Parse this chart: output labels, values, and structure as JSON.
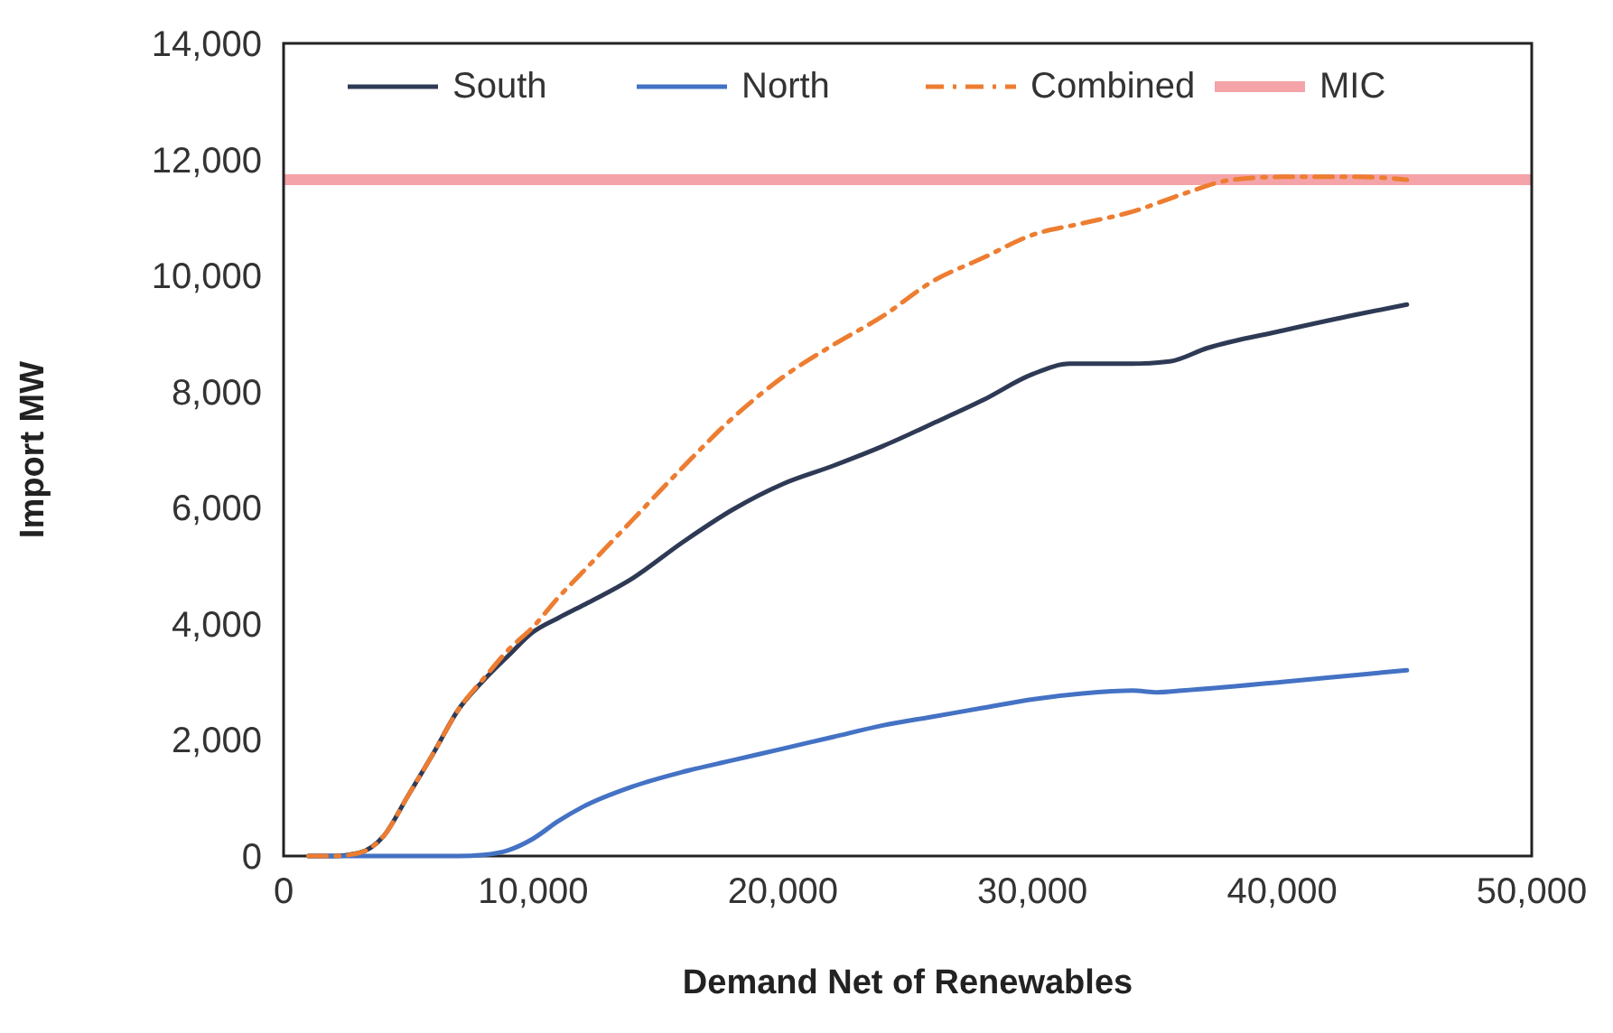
{
  "chart_data": {
    "type": "line",
    "xlabel": "Demand Net of Renewables",
    "ylabel": "Import MW",
    "xlim": [
      0,
      50000
    ],
    "ylim": [
      0,
      14000
    ],
    "xticks": [
      0,
      {
        "value": 10000,
        "label": "10,000"
      },
      {
        "value": 20000,
        "label": "20,000"
      },
      {
        "value": 30000,
        "label": "30,000"
      },
      {
        "value": 40000,
        "label": "40,000"
      },
      {
        "value": 50000,
        "label": "50,000"
      }
    ],
    "yticks": [
      0,
      {
        "value": 2000,
        "label": "2,000"
      },
      {
        "value": 4000,
        "label": "4,000"
      },
      {
        "value": 6000,
        "label": "6,000"
      },
      {
        "value": 8000,
        "label": "8,000"
      },
      {
        "value": 10000,
        "label": "10,000"
      },
      {
        "value": 12000,
        "label": "12,000"
      },
      {
        "value": 14000,
        "label": "14,000"
      }
    ],
    "grid": false,
    "legend": "top",
    "series": [
      {
        "name": "South",
        "color": "#2e3a55",
        "line_style": "solid",
        "x": [
          1000,
          2000,
          3000,
          4000,
          5000,
          6000,
          7000,
          8000,
          9000,
          10000,
          11000,
          12000,
          14000,
          16000,
          18000,
          20000,
          22000,
          24000,
          26000,
          28000,
          30000,
          31500,
          34000,
          35500,
          37000,
          40000,
          43000,
          45000
        ],
        "values": [
          0,
          0,
          50,
          340,
          1050,
          1770,
          2520,
          3020,
          3450,
          3860,
          4100,
          4320,
          4790,
          5410,
          5970,
          6410,
          6720,
          7060,
          7450,
          7850,
          8300,
          8480,
          8480,
          8520,
          8750,
          9050,
          9330,
          9500
        ]
      },
      {
        "name": "North",
        "color": "#4472c4",
        "line_style": "solid",
        "x": [
          1000,
          4000,
          7000,
          8000,
          9000,
          10000,
          11000,
          12000,
          14000,
          16000,
          18000,
          20000,
          22000,
          24000,
          26000,
          28000,
          30000,
          32000,
          34000,
          35000,
          36000,
          40000,
          43000,
          45000
        ],
        "values": [
          0,
          0,
          0,
          20,
          100,
          300,
          600,
          850,
          1200,
          1450,
          1650,
          1850,
          2050,
          2250,
          2400,
          2550,
          2700,
          2800,
          2850,
          2820,
          2850,
          3000,
          3120,
          3200
        ]
      },
      {
        "name": "Combined",
        "color": "#ed7d31",
        "line_style": "dashed",
        "x": [
          1000,
          2000,
          3000,
          4000,
          5000,
          6000,
          7000,
          8000,
          9000,
          10000,
          11000,
          12000,
          14000,
          16000,
          18000,
          20000,
          22000,
          24000,
          26000,
          28000,
          30000,
          32000,
          34000,
          36000,
          38000,
          40000,
          43000,
          45000
        ],
        "values": [
          0,
          0,
          50,
          340,
          1050,
          1770,
          2520,
          3050,
          3550,
          3950,
          4450,
          4900,
          5800,
          6700,
          7550,
          8250,
          8800,
          9300,
          9900,
          10300,
          10700,
          10900,
          11100,
          11400,
          11650,
          11700,
          11700,
          11650
        ]
      }
    ],
    "ref_lines": [
      {
        "axis": "y",
        "value": 11650,
        "label": "MIC",
        "color": "#f4a3a8"
      }
    ]
  }
}
